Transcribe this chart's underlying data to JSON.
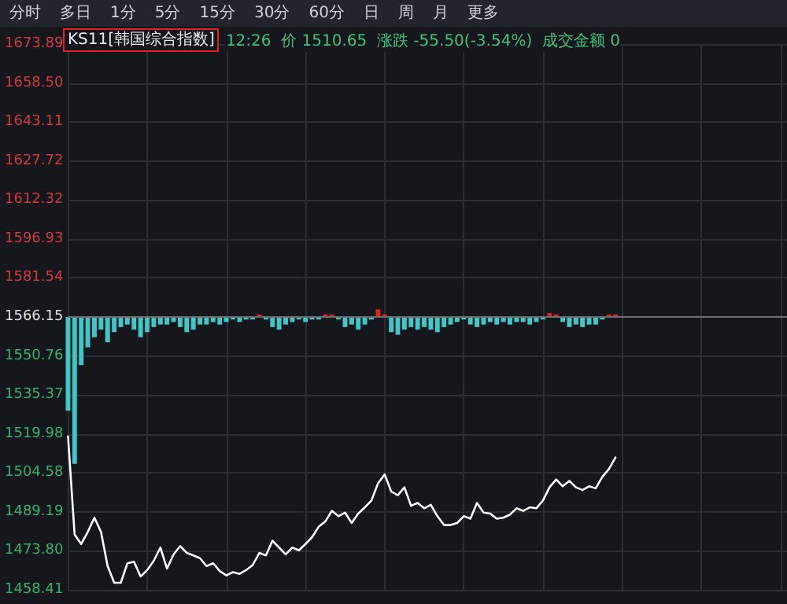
{
  "chart_data": {
    "type": "line",
    "title": "KS11[韩国综合指数]",
    "subtitle": "12:26  价 1510.65  涨跌 -55.50(-3.54%)  成交金额 0",
    "annotations": [
      "分时",
      "多日",
      "1分",
      "5分",
      "15分",
      "30分",
      "60分",
      "日",
      "周",
      "月",
      "更多"
    ],
    "categories": [
      null,
      null,
      null,
      null,
      null,
      null,
      null,
      null,
      null,
      null,
      null,
      null,
      null,
      null,
      null,
      null,
      null,
      null,
      null,
      null,
      null,
      null,
      null,
      null,
      null,
      null,
      null,
      null,
      null,
      null,
      null,
      null,
      null,
      null,
      null,
      null,
      null,
      null,
      null,
      null,
      null,
      null,
      null,
      null,
      null,
      null,
      null,
      null,
      null,
      null,
      null,
      null,
      null,
      null,
      null,
      null,
      null,
      null,
      null,
      null,
      null,
      null,
      null,
      null,
      null,
      null,
      null,
      null,
      null,
      null,
      null,
      null,
      null,
      null,
      null,
      null,
      null,
      null,
      null,
      null,
      null,
      null,
      null,
      null,
      null,
      null,
      null,
      null,
      null,
      null,
      null,
      null,
      null,
      null,
      null,
      null,
      null,
      null,
      null,
      null,
      null,
      null,
      null,
      null,
      null,
      null,
      null,
      null,
      null,
      null
    ],
    "series": [
      {
        "color": "#ffffff",
        "values": [
          1519,
          1480.2,
          1476.5,
          1481.3,
          1486.9,
          1481.3,
          1467.8,
          1461.2,
          1461.2,
          1468.9,
          1469.5,
          1463.7,
          1466.2,
          1469.9,
          1475.1,
          1466.8,
          1472.4,
          1475.7,
          1473,
          1472,
          1470.9,
          1467.8,
          1468.9,
          1465.8,
          1464.1,
          1465.4,
          1464.7,
          1466.2,
          1468.2,
          1473,
          1472,
          1477.8,
          1475.1,
          1472.4,
          1475.1,
          1474,
          1476.5,
          1479.2,
          1483.3,
          1485.4,
          1489.6,
          1487.5,
          1488.9,
          1484.8,
          1488.5,
          1491,
          1493.7,
          1500.5,
          1504,
          1497.2,
          1495.8,
          1498.9,
          1491.6,
          1492.7,
          1490.6,
          1492,
          1487.5,
          1484,
          1484,
          1484.8,
          1487.5,
          1486.5,
          1492.7,
          1488.9,
          1488.5,
          1486.5,
          1486.9,
          1488.1,
          1490.6,
          1489.6,
          1491,
          1490.6,
          1493.7,
          1498.9,
          1502,
          1499.3,
          1501.4,
          1498.9,
          1497.8,
          1499.3,
          1498.5,
          1503,
          1506.1,
          1510.7,
          null,
          null,
          null,
          null,
          null,
          null,
          null,
          null,
          null,
          null,
          null,
          null,
          null,
          null,
          null,
          null,
          null,
          null,
          null,
          null,
          null,
          null,
          null,
          null,
          null,
          null
        ]
      },
      {
        "type": "bar",
        "values": [
          -37,
          -58,
          -19,
          -12,
          -8,
          -5,
          -10,
          -6,
          -4,
          -3,
          -5,
          -8,
          -6,
          -4,
          -3,
          -3,
          -2,
          -4,
          -6,
          -5,
          -3,
          -3,
          -2,
          -3,
          -2,
          -1,
          -2,
          -1,
          -1,
          1,
          -1,
          -4,
          -5,
          -3,
          -2,
          -1,
          -2,
          -1,
          -1,
          1,
          1,
          -1,
          -4,
          -3,
          -5,
          -3,
          -1,
          3,
          1,
          -6,
          -7,
          -5,
          -4,
          -5,
          -4,
          -5,
          -6,
          -4,
          -3,
          -2,
          -1,
          -3,
          -4,
          -3,
          -2,
          -3,
          -2,
          -3,
          -2,
          -2,
          -3,
          -2,
          -1,
          1.5,
          1,
          -2,
          -4,
          -3,
          -4,
          -3,
          -3,
          -1,
          1,
          1,
          null,
          null,
          null,
          null,
          null,
          null,
          null,
          null,
          null,
          null,
          null,
          null,
          null,
          null,
          null,
          null,
          null,
          null,
          null,
          null,
          null,
          null,
          null,
          null,
          null,
          null
        ],
        "base": [
          1566.15,
          1566.15,
          1566.15,
          1566.15,
          1566.15,
          1566.15,
          1566.15,
          1566.15,
          1566.15,
          1566.15,
          1566.15,
          1566.15,
          1566.15,
          1566.15,
          1566.15,
          1566.15,
          1566.15,
          1566.15,
          1566.15,
          1566.15,
          1566.15,
          1566.15,
          1566.15,
          1566.15,
          1566.15,
          1566.15,
          1566.15,
          1566.15,
          1566.15,
          1566.15,
          1566.15,
          1566.15,
          1566.15,
          1566.15,
          1566.15,
          1566.15,
          1566.15,
          1566.15,
          1566.15,
          1566.15,
          1566.15,
          1566.15,
          1566.15,
          1566.15,
          1566.15,
          1566.15,
          1566.15,
          1566.15,
          1566.15,
          1566.15,
          1566.15,
          1566.15,
          1566.15,
          1566.15,
          1566.15,
          1566.15,
          1566.15,
          1566.15,
          1566.15,
          1566.15,
          1566.15,
          1566.15,
          1566.15,
          1566.15,
          1566.15,
          1566.15,
          1566.15,
          1566.15,
          1566.15,
          1566.15,
          1566.15,
          1566.15,
          1566.15,
          1566.15,
          1566.15,
          1566.15,
          1566.15,
          1566.15,
          1566.15,
          1566.15,
          1566.15,
          1566.15,
          1566.15,
          1566.15,
          null,
          null,
          null,
          null,
          null,
          null,
          null,
          null,
          null,
          null,
          null,
          null,
          null,
          null,
          null,
          null,
          null,
          null,
          null,
          null,
          null,
          null,
          null,
          null,
          null,
          null
        ],
        "colors": [
          "#3ec9c9",
          "#3ec9c9",
          "#3ec9c9",
          "#3ec9c9",
          "#3ec9c9",
          "#3ec9c9",
          "#3ec9c9",
          "#3ec9c9",
          "#3ec9c9",
          "#3ec9c9",
          "#3ec9c9",
          "#3ec9c9",
          "#3ec9c9",
          "#3ec9c9",
          "#3ec9c9",
          "#3ec9c9",
          "#3ec9c9",
          "#3ec9c9",
          "#3ec9c9",
          "#3ec9c9",
          "#3ec9c9",
          "#3ec9c9",
          "#3ec9c9",
          "#3ec9c9",
          "#3ec9c9",
          "#3ec9c9",
          "#3ec9c9",
          "#3ec9c9",
          "#3ec9c9",
          "#e02424",
          "#3ec9c9",
          "#3ec9c9",
          "#3ec9c9",
          "#3ec9c9",
          "#3ec9c9",
          "#3ec9c9",
          "#3ec9c9",
          "#3ec9c9",
          "#3ec9c9",
          "#e02424",
          "#e02424",
          "#3ec9c9",
          "#3ec9c9",
          "#3ec9c9",
          "#3ec9c9",
          "#3ec9c9",
          "#3ec9c9",
          "#e02424",
          "#e02424",
          "#3ec9c9",
          "#3ec9c9",
          "#3ec9c9",
          "#3ec9c9",
          "#3ec9c9",
          "#3ec9c9",
          "#3ec9c9",
          "#3ec9c9",
          "#3ec9c9",
          "#3ec9c9",
          "#3ec9c9",
          "#3ec9c9",
          "#3ec9c9",
          "#3ec9c9",
          "#3ec9c9",
          "#3ec9c9",
          "#3ec9c9",
          "#3ec9c9",
          "#3ec9c9",
          "#3ec9c9",
          "#3ec9c9",
          "#3ec9c9",
          "#3ec9c9",
          "#3ec9c9",
          "#e02424",
          "#e02424",
          "#3ec9c9",
          "#3ec9c9",
          "#3ec9c9",
          "#3ec9c9",
          "#3ec9c9",
          "#3ec9c9",
          "#3ec9c9",
          "#e02424",
          "#e02424",
          null,
          null,
          null,
          null,
          null,
          null,
          null,
          null,
          null,
          null,
          null,
          null,
          null,
          null,
          null,
          null,
          null,
          null,
          null,
          null,
          null,
          null,
          null,
          null,
          null,
          null
        ]
      }
    ],
    "ylim": [
      1458.41,
      1673.89
    ],
    "yticks": [
      1458.41,
      {
        "value": 1473.8,
        "label": "1473.80"
      },
      1489.19,
      1504.58,
      1519.98,
      1535.37,
      1550.76,
      1566.15,
      1581.54,
      1596.93,
      1612.32,
      1627.72,
      1643.11,
      {
        "value": 1658.5,
        "label": "1658.50"
      },
      1673.89
    ],
    "ref_lines": [
      {
        "axis": "y",
        "value": 1566.15,
        "color": "#6a6d73"
      }
    ],
    "grid": true,
    "tick_labels": "y",
    "line_style": "solid"
  }
}
